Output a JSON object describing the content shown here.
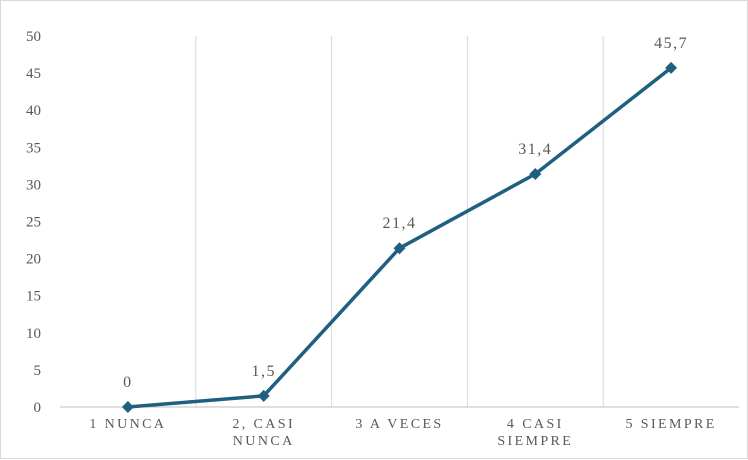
{
  "chart_data": {
    "type": "line",
    "title": "",
    "xlabel": "",
    "ylabel": "",
    "categories": [
      [
        "1 NUNCA"
      ],
      [
        "2, CASI",
        "NUNCA"
      ],
      [
        "3 A VECES"
      ],
      [
        "4 CASI",
        "SIEMPRE"
      ],
      [
        "5 SIEMPRE"
      ]
    ],
    "series": [
      {
        "values": [
          0,
          1.5,
          21.4,
          31.4,
          45.7
        ],
        "data_labels": [
          "0",
          "1,5",
          "21,4",
          "31,4",
          "45,7"
        ]
      }
    ],
    "ylim": [
      0,
      50
    ],
    "yticks": [
      0,
      5,
      10,
      15,
      20,
      25,
      30,
      35,
      40,
      45,
      50
    ],
    "grid": "vertical",
    "legend": "none",
    "marker": "diamond",
    "colors": {
      "line": "#1f5f7f",
      "grid": "#d9d9d9",
      "axis": "#bfbfbf",
      "text": "#595959",
      "border": "#d9d9d9"
    }
  }
}
